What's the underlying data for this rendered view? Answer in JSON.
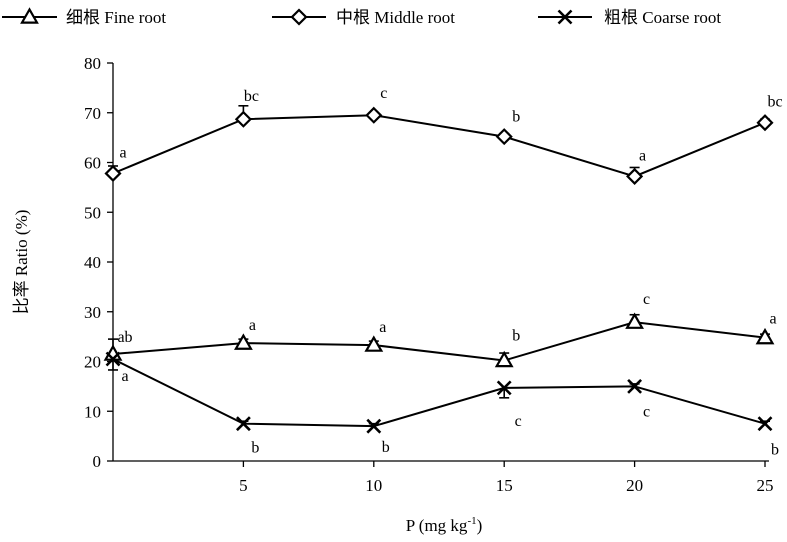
{
  "chart_data": {
    "type": "line",
    "x": [
      0,
      5,
      10,
      15,
      20,
      25
    ],
    "xticks": [
      "5",
      "10",
      "15",
      "20",
      "25"
    ],
    "xlim": [
      0,
      25
    ],
    "ylim": [
      0,
      80
    ],
    "yticks": [
      "0",
      "10",
      "20",
      "30",
      "40",
      "50",
      "60",
      "70",
      "80"
    ],
    "xlabel": "P (mg kg",
    "xlabel_sup": "-1",
    "xlabel_end": ")",
    "ylabel": "比率 Ratio (%)",
    "grid": false,
    "legend_position": "top",
    "series": [
      {
        "name": "细根 Fine root",
        "marker": "triangle",
        "values": [
          21.5,
          23.7,
          23.3,
          20.2,
          27.9,
          24.8
        ],
        "errors": [
          3.0,
          0.8,
          0.8,
          1.5,
          1.5,
          0.7
        ],
        "sig": [
          "ab",
          "a",
          "a",
          "b",
          "c",
          "a"
        ]
      },
      {
        "name": "中根 Middle root",
        "marker": "diamond",
        "values": [
          57.8,
          68.7,
          69.5,
          65.2,
          57.2,
          68.0
        ],
        "errors": [
          1.5,
          2.7,
          0.5,
          0.6,
          1.8,
          0.7
        ],
        "sig": [
          "a",
          "bc",
          "c",
          "b",
          "a",
          "bc"
        ]
      },
      {
        "name": "粗根 Coarse  root",
        "marker": "x",
        "values": [
          20.5,
          7.5,
          7.0,
          14.7,
          15.0,
          7.5
        ],
        "errors": [
          2.2,
          0.5,
          0.5,
          2.0,
          0.5,
          0.5
        ],
        "sig": [
          "a",
          "b",
          "b",
          "c",
          "c",
          "b"
        ]
      }
    ]
  }
}
